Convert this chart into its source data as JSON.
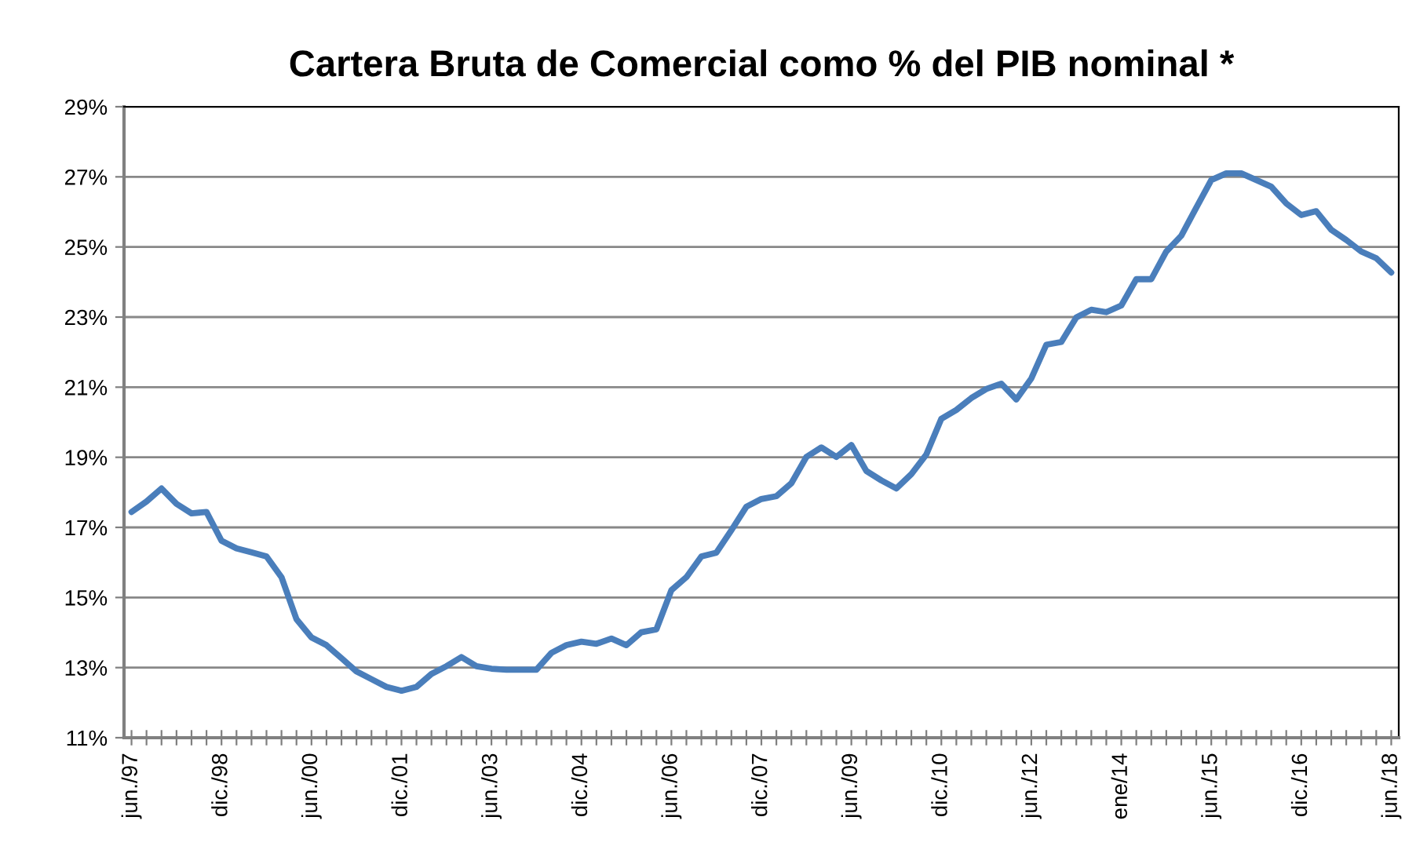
{
  "chart_data": {
    "type": "line",
    "title": "Cartera Bruta de Comercial como % del PIB nominal *",
    "categories": [
      "jun./97",
      null,
      null,
      null,
      null,
      null,
      "dic./98",
      null,
      null,
      null,
      null,
      null,
      "jun./00",
      null,
      null,
      null,
      null,
      null,
      "dic./01",
      null,
      null,
      null,
      null,
      null,
      "jun./03",
      null,
      null,
      null,
      null,
      null,
      "dic./04",
      null,
      null,
      null,
      null,
      null,
      "jun./06",
      null,
      null,
      null,
      null,
      null,
      "dic./07",
      null,
      null,
      null,
      null,
      null,
      "jun./09",
      null,
      null,
      null,
      null,
      null,
      "dic./10",
      null,
      null,
      null,
      null,
      null,
      "jun./12",
      null,
      null,
      null,
      null,
      null,
      "ene/14",
      null,
      null,
      null,
      null,
      null,
      "jun./15",
      null,
      null,
      null,
      null,
      null,
      "dic./16",
      null,
      null,
      null,
      null,
      null,
      "jun./18"
    ],
    "series": [
      {
        "color": "#4a7ebb",
        "values": [
          17.44,
          17.74,
          18.11,
          17.67,
          17.4,
          17.44,
          16.62,
          16.4,
          16.29,
          16.17,
          15.58,
          14.38,
          13.86,
          13.64,
          13.27,
          12.89,
          12.67,
          12.45,
          12.34,
          12.45,
          12.82,
          13.04,
          13.3,
          13.04,
          12.97,
          12.94,
          12.94,
          12.94,
          13.42,
          13.64,
          13.74,
          13.68,
          13.83,
          13.64,
          14.01,
          14.09,
          15.21,
          15.58,
          16.17,
          16.28,
          16.92,
          17.59,
          17.81,
          17.89,
          18.26,
          19.01,
          19.28,
          19.01,
          19.35,
          18.61,
          18.34,
          18.11,
          18.52,
          19.08,
          20.1,
          20.35,
          20.69,
          20.95,
          21.1,
          20.65,
          21.25,
          22.21,
          22.29,
          22.99,
          23.21,
          23.14,
          23.33,
          24.08,
          24.08,
          24.87,
          25.32,
          26.12,
          26.91,
          27.1,
          27.1,
          26.91,
          26.72,
          26.24,
          25.91,
          26.02,
          25.49,
          25.2,
          24.87,
          24.68,
          24.27
        ]
      }
    ],
    "ylim": [
      11,
      29
    ],
    "yticks": [
      {
        "value": 11,
        "label": "11%"
      },
      {
        "value": 13,
        "label": "13%"
      },
      {
        "value": 15,
        "label": "15%"
      },
      {
        "value": 17,
        "label": "17%"
      },
      {
        "value": 19,
        "label": "19%"
      },
      {
        "value": 21,
        "label": "21%"
      },
      {
        "value": 23,
        "label": "23%"
      },
      {
        "value": 25,
        "label": "25%"
      },
      {
        "value": 27,
        "label": "27%"
      },
      {
        "value": 29,
        "label": "29%"
      }
    ],
    "grid": "y",
    "marker": "none",
    "line_style": "solid",
    "legend": false
  }
}
